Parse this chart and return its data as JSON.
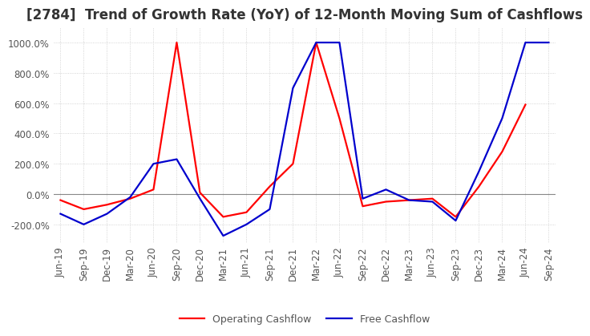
{
  "title": "[2784]  Trend of Growth Rate (YoY) of 12-Month Moving Sum of Cashflows",
  "ylim": [
    -320,
    1100
  ],
  "yticks": [
    -200,
    0,
    200,
    400,
    600,
    800,
    1000
  ],
  "ytick_labels": [
    "-200.0%",
    "0.0%",
    "200.0%",
    "400.0%",
    "600.0%",
    "800.0%",
    "1000.0%"
  ],
  "x_labels": [
    "Jun-19",
    "Sep-19",
    "Dec-19",
    "Mar-20",
    "Jun-20",
    "Sep-20",
    "Dec-20",
    "Mar-21",
    "Jun-21",
    "Sep-21",
    "Dec-21",
    "Mar-22",
    "Jun-22",
    "Sep-22",
    "Dec-22",
    "Mar-23",
    "Jun-23",
    "Sep-23",
    "Dec-23",
    "Mar-24",
    "Jun-24",
    "Sep-24"
  ],
  "operating_cashflow": [
    -40,
    -100,
    -70,
    -30,
    30,
    1000,
    10,
    -150,
    -120,
    50,
    200,
    1000,
    500,
    -80,
    -50,
    -40,
    -30,
    -150,
    50,
    280,
    590,
    null
  ],
  "free_cashflow": [
    -130,
    -200,
    -130,
    -20,
    200,
    230,
    -30,
    -275,
    -200,
    -100,
    700,
    1000,
    1000,
    -30,
    30,
    -40,
    -50,
    -175,
    150,
    500,
    1000,
    1000
  ],
  "line_color_operating": "#ff0000",
  "line_color_free": "#0000cd",
  "line_width": 1.6,
  "background_color": "#ffffff",
  "grid_color": "#c8c8c8",
  "title_color": "#333333",
  "legend_operating": "Operating Cashflow",
  "legend_free": "Free Cashflow",
  "title_fontsize": 12,
  "tick_fontsize": 8.5,
  "legend_fontsize": 9
}
